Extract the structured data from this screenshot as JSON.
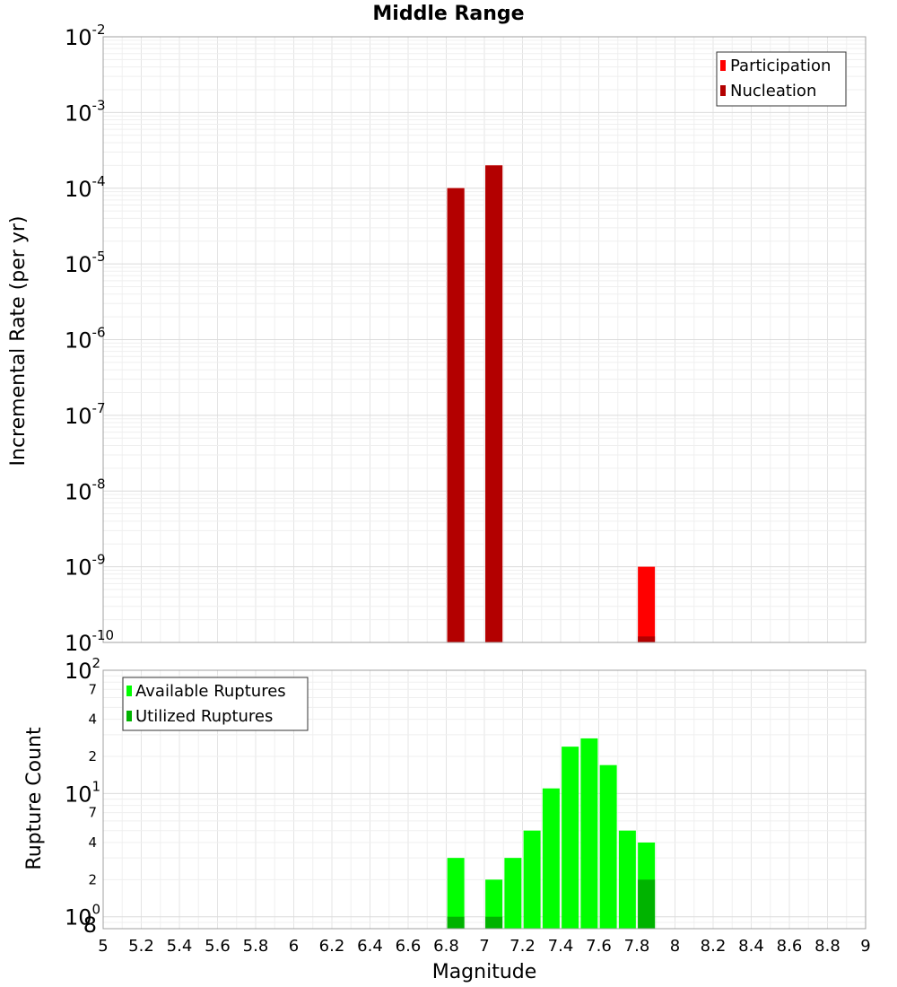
{
  "chart_data": [
    {
      "type": "bar",
      "title": "Middle Range",
      "xlabel": "",
      "ylabel": "Incremental Rate (per yr)",
      "yscale": "log",
      "ylim": [
        1e-10,
        0.01
      ],
      "xlim": [
        5,
        9
      ],
      "grid": true,
      "legend_position": "top-right",
      "series": [
        {
          "name": "Participation",
          "color": "#ff0000",
          "points": [
            {
              "x": 6.85,
              "y": 0.0001
            },
            {
              "x": 7.05,
              "y": 0.0002
            },
            {
              "x": 7.85,
              "y": 1e-09
            }
          ]
        },
        {
          "name": "Nucleation",
          "color": "#b30000",
          "points": [
            {
              "x": 6.85,
              "y": 0.0001
            },
            {
              "x": 7.05,
              "y": 0.0002
            },
            {
              "x": 7.85,
              "y": 1.2e-10
            }
          ]
        }
      ]
    },
    {
      "type": "bar",
      "title": "",
      "xlabel": "Magnitude",
      "ylabel": "Rupture Count",
      "yscale": "log",
      "ylim": [
        0.8,
        100
      ],
      "xlim": [
        5,
        9
      ],
      "grid": true,
      "legend_position": "top-left",
      "series": [
        {
          "name": "Available Ruptures",
          "color": "#00ff00",
          "points": [
            {
              "x": 6.85,
              "y": 3
            },
            {
              "x": 7.05,
              "y": 2
            },
            {
              "x": 7.15,
              "y": 3
            },
            {
              "x": 7.25,
              "y": 5
            },
            {
              "x": 7.35,
              "y": 11
            },
            {
              "x": 7.45,
              "y": 24
            },
            {
              "x": 7.55,
              "y": 28
            },
            {
              "x": 7.65,
              "y": 17
            },
            {
              "x": 7.75,
              "y": 5
            },
            {
              "x": 7.85,
              "y": 4
            }
          ]
        },
        {
          "name": "Utilized Ruptures",
          "color": "#00b300",
          "points": [
            {
              "x": 6.85,
              "y": 1
            },
            {
              "x": 7.05,
              "y": 1
            },
            {
              "x": 7.85,
              "y": 2
            }
          ]
        }
      ]
    }
  ],
  "x_ticks": [
    "5",
    "5.2",
    "5.4",
    "5.6",
    "5.8",
    "6",
    "6.2",
    "6.4",
    "6.6",
    "6.8",
    "7",
    "7.2",
    "7.4",
    "7.6",
    "7.8",
    "8",
    "8.2",
    "8.4",
    "8.6",
    "8.8",
    "9"
  ],
  "top_y_ticks": [
    {
      "base": "10",
      "exp": "-2"
    },
    {
      "base": "10",
      "exp": "-3"
    },
    {
      "base": "10",
      "exp": "-4"
    },
    {
      "base": "10",
      "exp": "-5"
    },
    {
      "base": "10",
      "exp": "-6"
    },
    {
      "base": "10",
      "exp": "-7"
    },
    {
      "base": "10",
      "exp": "-8"
    },
    {
      "base": "10",
      "exp": "-9"
    },
    {
      "base": "10",
      "exp": "-10"
    }
  ],
  "bottom_y_major": [
    {
      "base": "10",
      "exp": "2"
    },
    {
      "base": "10",
      "exp": "1"
    },
    {
      "base": "10",
      "exp": "0"
    }
  ],
  "bottom_y_minor": [
    "7",
    "4",
    "2",
    "7",
    "4",
    "2",
    "8"
  ]
}
